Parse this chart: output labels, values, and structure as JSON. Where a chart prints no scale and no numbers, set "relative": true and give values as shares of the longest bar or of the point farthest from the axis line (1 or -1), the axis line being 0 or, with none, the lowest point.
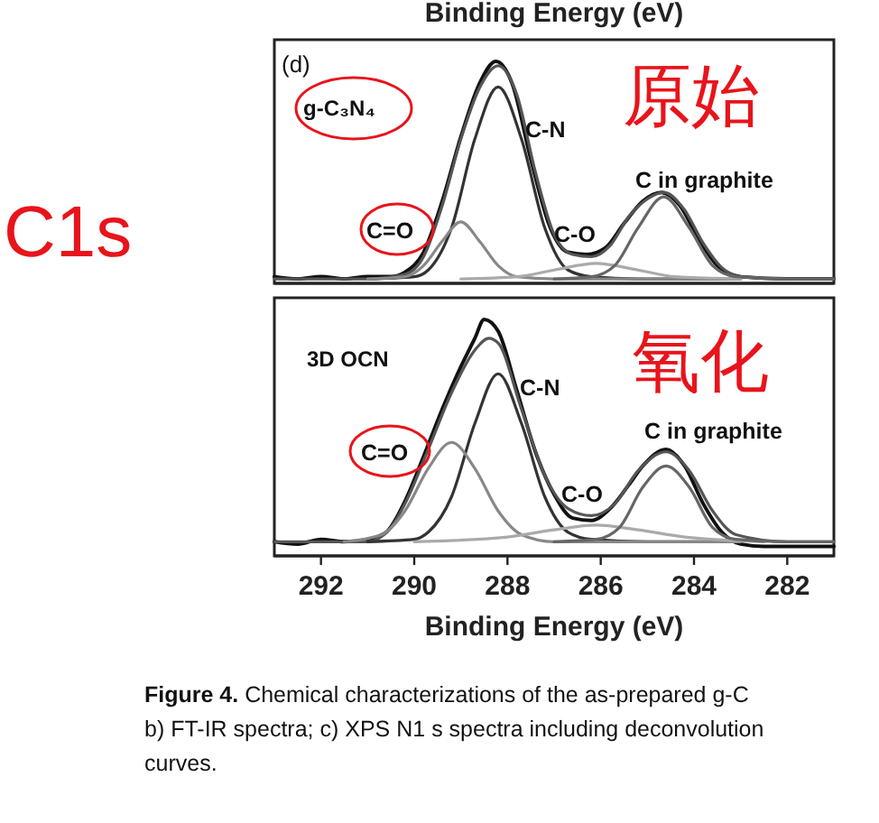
{
  "chart_data": [
    {
      "type": "line",
      "title": "Binding Energy (eV)",
      "relative": true,
      "xlim": [
        293,
        281
      ],
      "tick_labels": false,
      "series": [
        {
          "color": "#111111",
          "x": [
            293,
            292.5,
            292,
            291.5,
            291,
            290.5,
            290.2,
            289.8,
            289.4,
            289,
            288.6,
            288.25,
            287.9,
            287.5,
            287.1,
            286.7,
            286.3,
            285.9,
            285.5,
            285.1,
            284.7,
            284.3,
            283.9,
            283.5,
            283,
            282,
            281
          ],
          "values": [
            0.03,
            0.02,
            0.03,
            0.02,
            0.03,
            0.03,
            0.05,
            0.14,
            0.37,
            0.66,
            0.9,
            1,
            0.9,
            0.56,
            0.26,
            0.14,
            0.13,
            0.16,
            0.27,
            0.37,
            0.41,
            0.35,
            0.2,
            0.08,
            0.03,
            0.02,
            0.02
          ]
        },
        {
          "color": "#555555",
          "x": [
            293,
            291,
            290.2,
            289.8,
            289.4,
            289,
            288.6,
            288.2,
            287.8,
            287.4,
            287,
            286.6,
            286.2,
            285.8,
            285.4,
            285,
            284.65,
            284.2,
            283.8,
            283.4,
            283,
            282,
            281
          ],
          "values": [
            0.02,
            0.02,
            0.04,
            0.12,
            0.35,
            0.65,
            0.88,
            0.98,
            0.85,
            0.5,
            0.22,
            0.13,
            0.12,
            0.17,
            0.3,
            0.38,
            0.41,
            0.33,
            0.18,
            0.07,
            0.03,
            0.02,
            0.02
          ]
        },
        {
          "color": "#333333",
          "x": [
            291,
            290,
            289.7,
            289.2,
            288.7,
            288.2,
            287.7,
            287.2,
            286.7,
            286.2,
            285.2,
            283
          ],
          "values": [
            0.02,
            0.03,
            0.06,
            0.25,
            0.65,
            0.885,
            0.65,
            0.25,
            0.06,
            0.03,
            0.02,
            0.02
          ]
        },
        {
          "color": "#888888",
          "x": [
            291,
            290.2,
            289.8,
            289.4,
            289,
            288.6,
            288.2,
            287.8,
            287,
            283
          ],
          "values": [
            0.02,
            0.03,
            0.08,
            0.19,
            0.277,
            0.19,
            0.08,
            0.03,
            0.02,
            0.02
          ]
        },
        {
          "color": "#aaaaaa",
          "x": [
            289,
            287.8,
            287,
            286.1,
            285.2,
            284.4,
            283
          ],
          "values": [
            0.02,
            0.03,
            0.06,
            0.09,
            0.06,
            0.03,
            0.02
          ]
        },
        {
          "color": "#666666",
          "x": [
            287,
            286.2,
            285.7,
            285.2,
            284.65,
            284.1,
            283.6,
            283.1,
            282,
            281
          ],
          "values": [
            0.02,
            0.03,
            0.08,
            0.25,
            0.39,
            0.25,
            0.08,
            0.03,
            0.02,
            0.02
          ]
        }
      ],
      "annotations": [
        "(d)",
        "g-C₃N₄",
        "C1s",
        "原始",
        "C-N",
        "C=O",
        "C-O",
        "C in graphite"
      ]
    },
    {
      "type": "line",
      "xlabel": "Binding Energy (eV)",
      "relative": true,
      "xlim": [
        293,
        281
      ],
      "xticks": [
        292,
        290,
        288,
        286,
        284,
        282
      ],
      "tick_labels": "x",
      "series": [
        {
          "color": "#111111",
          "x": [
            293,
            292.5,
            292,
            291.5,
            291,
            290.6,
            290.2,
            289.8,
            289.4,
            289,
            288.7,
            288.5,
            288.2,
            287.8,
            287.4,
            287,
            286.6,
            286.2,
            285.8,
            285.4,
            285.1,
            284.6,
            284.2,
            283.8,
            283.4,
            283,
            282.5,
            282,
            281
          ],
          "values": [
            0.06,
            0.05,
            0.07,
            0.06,
            0.07,
            0.1,
            0.23,
            0.42,
            0.62,
            0.8,
            0.92,
            1,
            0.95,
            0.7,
            0.44,
            0.26,
            0.16,
            0.15,
            0.2,
            0.3,
            0.38,
            0.45,
            0.38,
            0.22,
            0.1,
            0.05,
            0.04,
            0.04,
            0.04
          ]
        },
        {
          "color": "#555555",
          "x": [
            293,
            291,
            290.5,
            290.2,
            289.7,
            289.2,
            288.7,
            288.4,
            288.2,
            287.7,
            287.2,
            286.7,
            286.2,
            285.7,
            285.2,
            284.6,
            284.1,
            283.6,
            283.1,
            282,
            281
          ],
          "values": [
            0.06,
            0.06,
            0.12,
            0.22,
            0.45,
            0.69,
            0.87,
            0.92,
            0.9,
            0.62,
            0.34,
            0.2,
            0.17,
            0.22,
            0.36,
            0.44,
            0.36,
            0.19,
            0.09,
            0.06,
            0.06
          ]
        },
        {
          "color": "#333333",
          "x": [
            291,
            290,
            289.7,
            289.2,
            288.7,
            288.2,
            287.7,
            287.2,
            286.7,
            286.2,
            285,
            283
          ],
          "values": [
            0.06,
            0.07,
            0.1,
            0.25,
            0.56,
            0.77,
            0.56,
            0.25,
            0.1,
            0.07,
            0.06,
            0.06
          ]
        },
        {
          "color": "#888888",
          "x": [
            291.5,
            290.7,
            290.2,
            289.7,
            289.2,
            288.7,
            288.2,
            287.7,
            287,
            283
          ],
          "values": [
            0.06,
            0.09,
            0.19,
            0.37,
            0.48,
            0.37,
            0.19,
            0.09,
            0.06,
            0.06
          ]
        },
        {
          "color": "#aaaaaa",
          "x": [
            290,
            288,
            287,
            286.1,
            285.2,
            284.2,
            282.5
          ],
          "values": [
            0.06,
            0.08,
            0.11,
            0.13,
            0.11,
            0.08,
            0.06
          ]
        },
        {
          "color": "#666666",
          "x": [
            287,
            286.1,
            285.6,
            285.1,
            284.6,
            284.1,
            283.6,
            283.1,
            282,
            281
          ],
          "values": [
            0.06,
            0.07,
            0.12,
            0.29,
            0.38,
            0.29,
            0.12,
            0.07,
            0.06,
            0.06
          ]
        }
      ],
      "annotations": [
        "3D OCN",
        "氧化",
        "C-N",
        "C=O",
        "C-O",
        "C in graphite",
        "Figure 4. Chemical characterizations of the as-prepared g-C",
        "b) FT-IR spectra; c) XPS N1 s spectra including deconvolution",
        "curves."
      ]
    }
  ]
}
